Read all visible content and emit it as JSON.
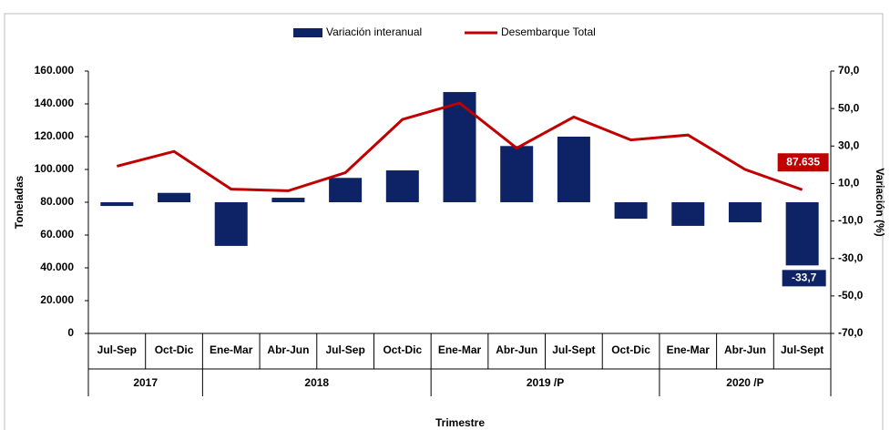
{
  "chart_data": {
    "type": "bar_line",
    "categories": [
      "Jul-Sep",
      "Oct-Dic",
      "Ene-Mar",
      "Abr-Jun",
      "Jul-Sep",
      "Oct-Dic",
      "Ene-Mar",
      "Abr-Jun",
      "Jul-Sept",
      "Oct-Dic",
      "Ene-Mar",
      "Abr-Jun",
      "Jul-Sept"
    ],
    "category_groups": [
      "2017",
      "2017",
      "2018",
      "2018",
      "2018",
      "2018",
      "2019 /P",
      "2019 /P",
      "2019 /P",
      "2019 /P",
      "2020 /P",
      "2020 /P",
      "2020 /P"
    ],
    "series": [
      {
        "name": "Variación interanual",
        "type": "bar",
        "axis": "y2",
        "color": "#0d2366",
        "values": [
          -2,
          5,
          -23.3,
          2.4,
          13,
          17,
          58.8,
          30,
          35,
          -8.8,
          -12.6,
          -10.7,
          -33.7
        ],
        "value_labels": [
          null,
          null,
          null,
          null,
          null,
          null,
          null,
          null,
          null,
          null,
          null,
          null,
          "-33,7"
        ]
      },
      {
        "name": "Desembarque Total",
        "type": "line",
        "axis": "y",
        "color": "#c00000",
        "values": [
          102000,
          111000,
          88000,
          87000,
          98000,
          130500,
          140500,
          113000,
          132000,
          118000,
          121000,
          100000,
          87635
        ],
        "value_labels": [
          null,
          null,
          null,
          null,
          null,
          null,
          null,
          null,
          null,
          null,
          null,
          null,
          "87.635"
        ]
      }
    ],
    "x_label": "Trimestre",
    "y_label": "Toneladas",
    "y2_label": "Variación (%)",
    "ylim": [
      0,
      160000
    ],
    "yticks": [
      {
        "value": 0,
        "label": "0"
      },
      {
        "value": 20000,
        "label": "20.000"
      },
      {
        "value": 40000,
        "label": "40.000"
      },
      {
        "value": 60000,
        "label": "60.000"
      },
      {
        "value": 80000,
        "label": "80.000"
      },
      {
        "value": 100000,
        "label": "100.000"
      },
      {
        "value": 120000,
        "label": "120.000"
      },
      {
        "value": 140000,
        "label": "140.000"
      },
      {
        "value": 160000,
        "label": "160.000"
      }
    ],
    "y2lim": [
      -70,
      70
    ],
    "y2ticks": [
      {
        "value": -70,
        "label": "-70,0"
      },
      {
        "value": -50,
        "label": "-50,0"
      },
      {
        "value": -30,
        "label": "-30,0"
      },
      {
        "value": -10,
        "label": "-10,0"
      },
      {
        "value": 10,
        "label": "10,0"
      },
      {
        "value": 30,
        "label": "30,0"
      },
      {
        "value": 50,
        "label": "50,0"
      },
      {
        "value": 70,
        "label": "70,0"
      }
    ],
    "grid": false
  }
}
